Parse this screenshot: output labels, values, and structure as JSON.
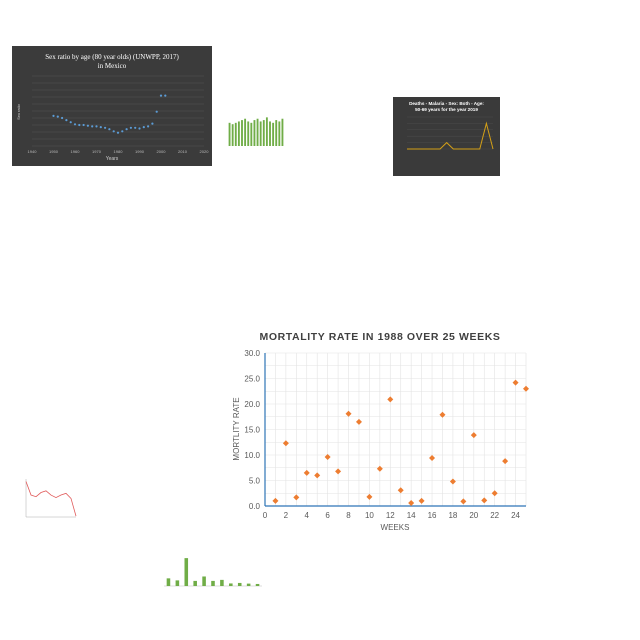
{
  "chart_data": [
    {
      "type": "scatter",
      "title": "Sex ratio by age (80 year olds) (UNWPP, 2017) in Mexico",
      "xlabel": "Years",
      "ylabel": "Sex ratio",
      "xlim": [
        1940,
        2020
      ],
      "ylim": [
        70,
        80
      ],
      "xticks": [
        "1940",
        "1950",
        "1960",
        "1970",
        "1980",
        "1990",
        "2000",
        "2010",
        "2020"
      ],
      "grid": true,
      "colors": {
        "background": "#3b3b3b",
        "marker": "#5b9bd5"
      },
      "x": [
        1950,
        1952,
        1954,
        1956,
        1958,
        1960,
        1962,
        1964,
        1966,
        1968,
        1970,
        1972,
        1974,
        1976,
        1978,
        1980,
        1982,
        1984,
        1986,
        1988,
        1990,
        1992,
        1994,
        1996,
        1998,
        2000,
        2002
      ],
      "y": [
        74.3,
        74.2,
        74.0,
        73.7,
        73.4,
        73.1,
        73.0,
        73.0,
        72.9,
        72.8,
        72.8,
        72.7,
        72.6,
        72.4,
        72.1,
        71.9,
        72.1,
        72.4,
        72.6,
        72.6,
        72.5,
        72.7,
        72.8,
        73.2,
        74.9,
        77.2,
        77.2
      ]
    },
    {
      "type": "bar",
      "title": "",
      "colors": {
        "bar": "#70ad47"
      },
      "values": [
        17,
        16,
        17,
        18,
        19,
        20,
        18,
        17,
        19,
        20,
        18,
        19,
        21,
        18,
        17,
        19,
        18,
        20
      ]
    },
    {
      "type": "line",
      "title": "Deaths - Malaria - Sex: Both - Age: 50-69 years for the year 2019",
      "colors": {
        "background": "#3a3a3a",
        "line": "#d4a017"
      },
      "values": [
        0,
        0,
        0,
        0,
        0,
        0,
        1,
        0,
        0,
        0,
        0,
        0,
        4,
        0
      ]
    },
    {
      "type": "scatter",
      "title": "MORTALITY RATE IN 1988 OVER 25 WEEKS",
      "xlabel": "WEEKS",
      "ylabel": "MORTLITY RATE",
      "xlim": [
        0,
        25
      ],
      "ylim": [
        0,
        30
      ],
      "xticks": [
        "0",
        "2",
        "4",
        "6",
        "8",
        "10",
        "12",
        "14",
        "16",
        "18",
        "20",
        "22",
        "24"
      ],
      "yticks": [
        "0.0",
        "5.0",
        "10.0",
        "15.0",
        "20.0",
        "25.0",
        "30.0"
      ],
      "grid": true,
      "colors": {
        "marker": "#ed7d31",
        "axis": "#2e75b6"
      },
      "x": [
        1,
        2,
        3,
        4,
        5,
        6,
        7,
        8,
        9,
        10,
        11,
        12,
        13,
        14,
        15,
        16,
        17,
        18,
        19,
        20,
        21,
        22,
        23,
        24,
        25
      ],
      "y": [
        1.0,
        12.3,
        1.7,
        6.5,
        6.0,
        9.6,
        6.8,
        18.1,
        16.5,
        1.8,
        7.3,
        20.9,
        3.1,
        0.6,
        1.0,
        9.4,
        17.9,
        4.8,
        0.9,
        13.9,
        1.1,
        2.5,
        8.8,
        24.2,
        23.0
      ]
    },
    {
      "type": "line",
      "title": "",
      "colors": {
        "line": "#e05a5a"
      },
      "values": [
        4.2,
        2.6,
        2.4,
        2.9,
        3.1,
        2.6,
        2.3,
        2.6,
        2.8,
        2.2,
        0.1
      ]
    },
    {
      "type": "bar",
      "title": "",
      "colors": {
        "bar": "#70ad47"
      },
      "values": [
        450,
        330,
        1640,
        300,
        560,
        300,
        360,
        150,
        180,
        140,
        120
      ]
    }
  ]
}
